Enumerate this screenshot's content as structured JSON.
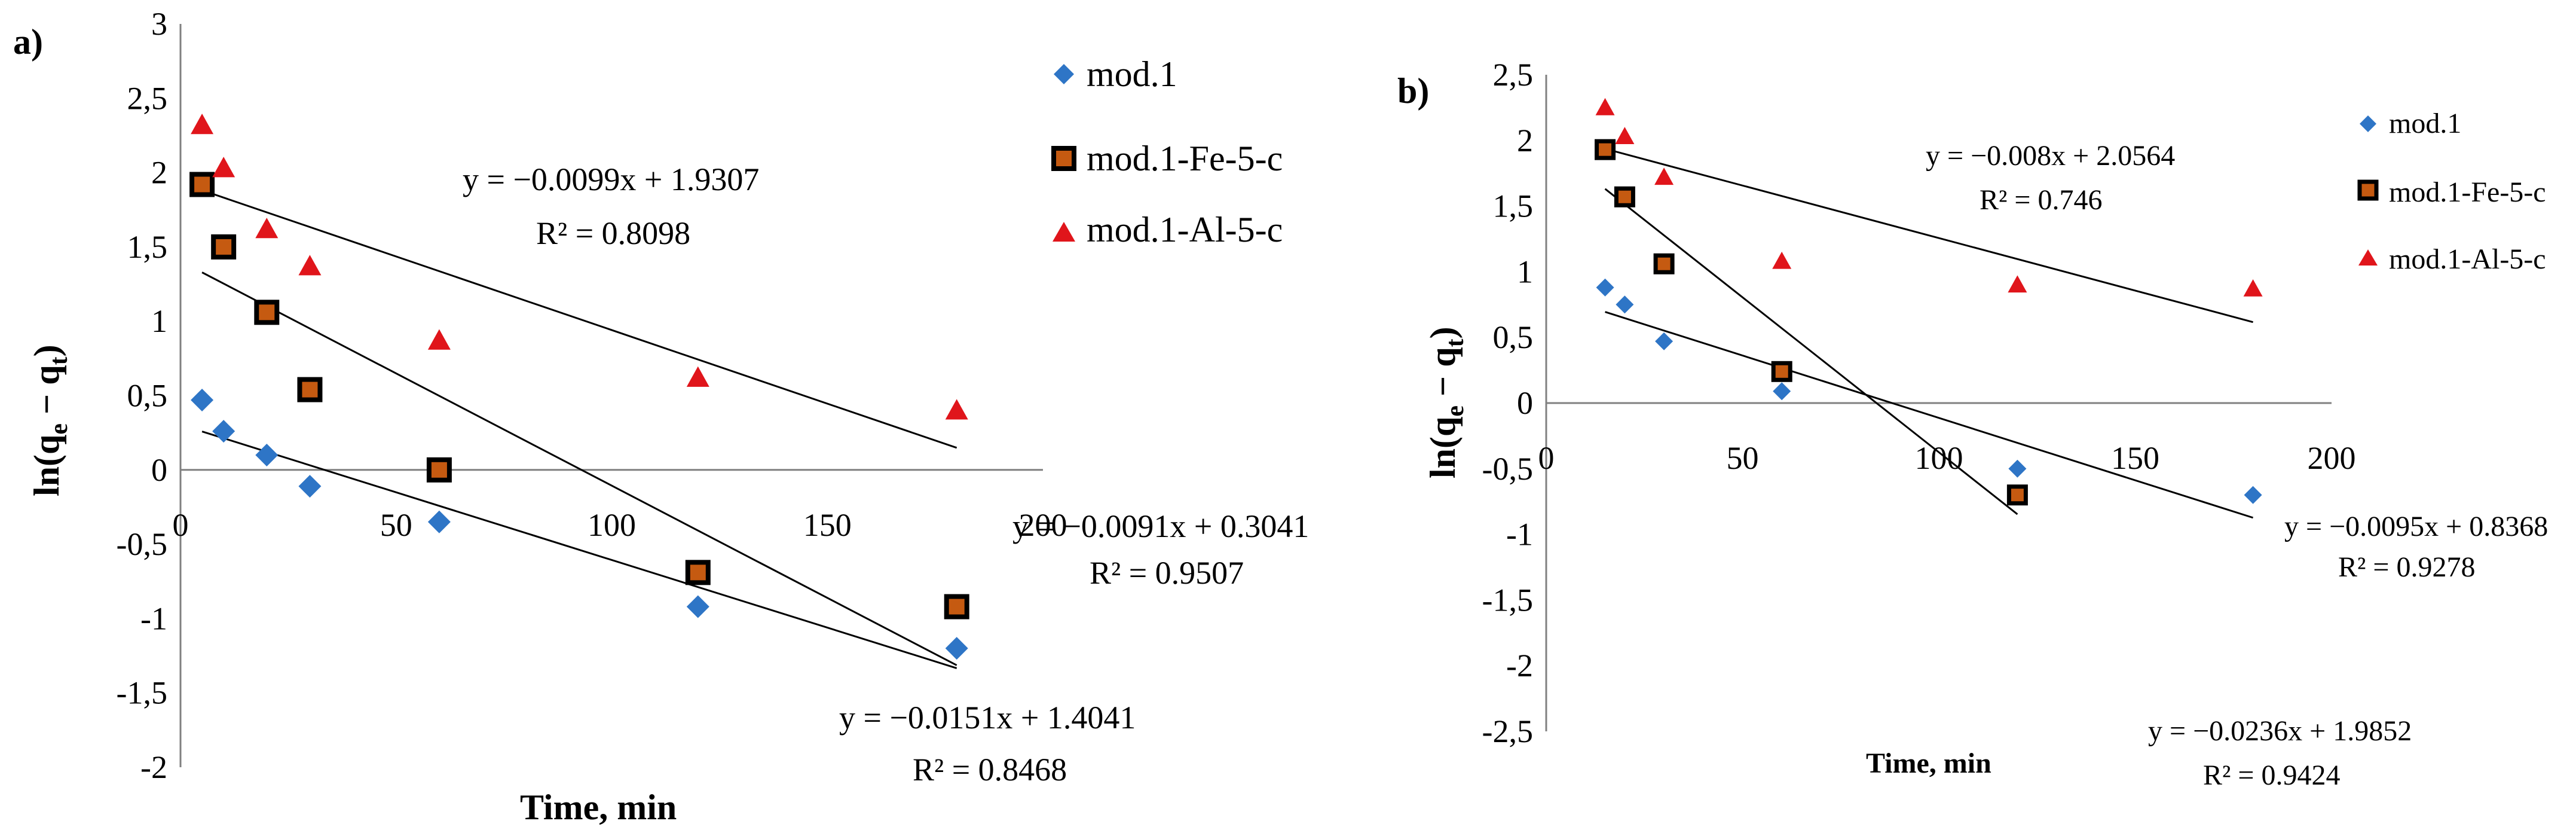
{
  "chart_data": [
    {
      "type": "scatter",
      "panel_label": "a)",
      "xlabel": "Time, min",
      "ylabel_base": "ln(q",
      "ylabel_sub1": "e",
      "ylabel_mid": " − q",
      "ylabel_sub2": "t",
      "ylabel_end": ")",
      "xlim": [
        0,
        200
      ],
      "ylim": [
        -2,
        3
      ],
      "xticks": [
        0,
        50,
        100,
        150,
        200
      ],
      "yticks": [
        -2,
        -1.5,
        -1,
        -0.5,
        0,
        0.5,
        1,
        1.5,
        2,
        2.5,
        3
      ],
      "xtick_labels": [
        "0",
        "50",
        "100",
        "150",
        "200"
      ],
      "ytick_labels": [
        "-2",
        "-1,5",
        "-1",
        "-0,5",
        "0",
        "0,5",
        "1",
        "1,5",
        "2",
        "2,5",
        "3"
      ],
      "series": [
        {
          "name": "mod.1",
          "marker": "diamond",
          "color": "#2E75C6",
          "x": [
            5,
            10,
            20,
            30,
            60,
            120,
            180
          ],
          "y": [
            0.47,
            0.26,
            0.1,
            -0.11,
            -0.35,
            -0.92,
            -1.2
          ],
          "fit": {
            "slope": -0.0091,
            "intercept": 0.3041,
            "eq": "y = −0.0091x + 0.3041",
            "r2": "R² = 0.9507"
          }
        },
        {
          "name": "mod.1-Fe-5-c",
          "marker": "square",
          "color": "#000000",
          "fill": "#C55A11",
          "x": [
            5,
            10,
            20,
            30,
            60,
            120,
            180
          ],
          "y": [
            1.92,
            1.5,
            1.06,
            0.54,
            0.0,
            -0.69,
            -0.92
          ],
          "fit": {
            "slope": -0.0151,
            "intercept": 1.4041,
            "eq": "y = −0.0151x + 1.4041",
            "r2": "R² = 0.8468"
          }
        },
        {
          "name": "mod.1-Al-5-c",
          "marker": "triangle",
          "color": "#E0151B",
          "x": [
            5,
            10,
            20,
            30,
            60,
            120,
            180
          ],
          "y": [
            2.32,
            2.03,
            1.62,
            1.37,
            0.87,
            0.62,
            0.4
          ],
          "fit": {
            "slope": -0.0099,
            "intercept": 1.9307,
            "eq": "y = −0.0099x + 1.9307",
            "r2": "R² = 0.8098"
          }
        }
      ]
    },
    {
      "type": "scatter",
      "panel_label": "b)",
      "xlabel": "Time,  min",
      "ylabel_base": "ln(q",
      "ylabel_sub1": "e",
      "ylabel_mid": " − q",
      "ylabel_sub2": "t",
      "ylabel_end": ")",
      "xlim": [
        0,
        200
      ],
      "ylim": [
        -2.5,
        2.5
      ],
      "xticks": [
        0,
        50,
        100,
        150,
        200
      ],
      "yticks": [
        -2.5,
        -2,
        -1.5,
        -1,
        -0.5,
        0,
        0.5,
        1,
        1.5,
        2,
        2.5
      ],
      "xtick_labels": [
        "0",
        "50",
        "100",
        "150",
        "200"
      ],
      "ytick_labels": [
        "-2,5",
        "-2",
        "-1,5",
        "-1",
        "-0,5",
        "0",
        "0,5",
        "1",
        "1,5",
        "2",
        "2,5"
      ],
      "series": [
        {
          "name": "mod.1",
          "marker": "diamond",
          "color": "#2E75C6",
          "x": [
            15,
            20,
            30,
            60,
            120,
            180
          ],
          "y": [
            0.88,
            0.75,
            0.47,
            0.09,
            -0.5,
            -0.7
          ],
          "fit": {
            "slope": -0.0095,
            "intercept": 0.8368,
            "eq": "y = −0.0095x + 0.8368",
            "r2": "R² = 0.9278"
          }
        },
        {
          "name": "mod.1-Fe-5-c",
          "marker": "square",
          "color": "#000000",
          "fill": "#C55A11",
          "x": [
            15,
            20,
            30,
            60,
            120
          ],
          "y": [
            1.93,
            1.57,
            1.06,
            0.24,
            -0.7
          ],
          "fit": {
            "slope": -0.0236,
            "intercept": 1.9852,
            "eq": "y = −0.0236x + 1.9852",
            "r2": "R² = 0.9424"
          }
        },
        {
          "name": "mod.1-Al-5-c",
          "marker": "triangle",
          "color": "#E0151B",
          "x": [
            15,
            20,
            30,
            60,
            120,
            180
          ],
          "y": [
            2.25,
            2.03,
            1.72,
            1.08,
            0.9,
            0.87
          ],
          "fit": {
            "slope": -0.008,
            "intercept": 2.0564,
            "eq": "y = −0.008x + 2.0564",
            "r2": "R² = 0.746"
          }
        }
      ]
    }
  ]
}
